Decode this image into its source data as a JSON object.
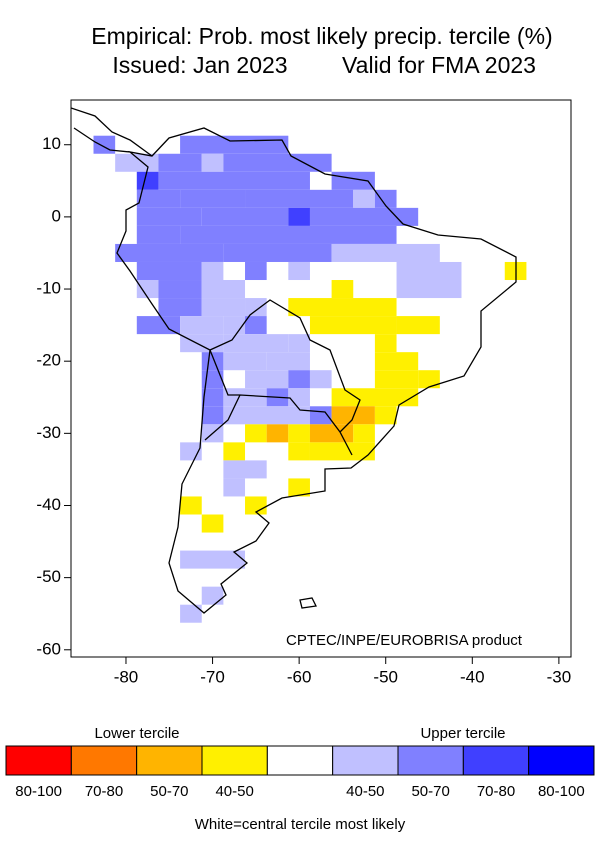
{
  "header": {
    "title": "Empirical: Prob. most likely precip. tercile (%)",
    "issued": "Issued: Jan 2023",
    "valid": "Valid for FMA 2023"
  },
  "map": {
    "xlim": [
      -86.35,
      -28.6
    ],
    "ylim": [
      -61,
      16.2
    ],
    "xticks": [
      -80,
      -70,
      -60,
      -50,
      -40,
      -30
    ],
    "yticks": [
      10,
      0,
      -10,
      -20,
      -30,
      -40,
      -50,
      -60
    ],
    "cell_size": 2.5,
    "credit": "CPTEC/INPE/EUROBRISA product",
    "runs": [
      [
        10,
        -82.5,
        -82.5,
        6
      ],
      [
        10,
        -72.5,
        -62.5,
        6
      ],
      [
        7.5,
        -80,
        -77.5,
        5
      ],
      [
        7.5,
        -75,
        -72.5,
        6
      ],
      [
        7.5,
        -70,
        -70,
        5
      ],
      [
        7.5,
        -67.5,
        -57.5,
        6
      ],
      [
        5,
        -77.5,
        -77.5,
        7
      ],
      [
        5,
        -75,
        -60,
        6
      ],
      [
        5,
        -55,
        -52.5,
        6
      ],
      [
        2.5,
        -77.5,
        -75,
        6
      ],
      [
        2.5,
        -72.5,
        -67.5,
        6
      ],
      [
        2.5,
        -65,
        -55,
        6
      ],
      [
        2.5,
        -52.5,
        -52.5,
        5
      ],
      [
        2.5,
        -50,
        -50,
        6
      ],
      [
        0,
        -77.5,
        -72.5,
        6
      ],
      [
        0,
        -70,
        -62.5,
        6
      ],
      [
        0,
        -60,
        -60,
        7
      ],
      [
        0,
        -57.5,
        -47.5,
        6
      ],
      [
        -2.5,
        -77.5,
        -75,
        6
      ],
      [
        -2.5,
        -72.5,
        -50,
        6
      ],
      [
        -5,
        -80,
        -70,
        6
      ],
      [
        -5,
        -67.5,
        -57.5,
        6
      ],
      [
        -5,
        -55,
        -45,
        5
      ],
      [
        -7.5,
        -77.5,
        -72.5,
        6
      ],
      [
        -7.5,
        -70,
        -70,
        5
      ],
      [
        -7.5,
        -65,
        -65,
        6
      ],
      [
        -7.5,
        -60,
        -60,
        5
      ],
      [
        -7.5,
        -47.5,
        -42.5,
        5
      ],
      [
        -7.5,
        -35,
        -35,
        3
      ],
      [
        -10,
        -77.5,
        -77.5,
        5
      ],
      [
        -10,
        -75,
        -72.5,
        6
      ],
      [
        -10,
        -70,
        -67.5,
        5
      ],
      [
        -10,
        -55,
        -55,
        3
      ],
      [
        -10,
        -47.5,
        -42.5,
        5
      ],
      [
        -12.5,
        -75,
        -72.5,
        6
      ],
      [
        -12.5,
        -70,
        -67.5,
        5
      ],
      [
        -12.5,
        -65,
        -65,
        5
      ],
      [
        -12.5,
        -60,
        -50,
        3
      ],
      [
        -15,
        -77.5,
        -75,
        6
      ],
      [
        -15,
        -72.5,
        -70,
        5
      ],
      [
        -15,
        -67.5,
        -67.5,
        5
      ],
      [
        -15,
        -65,
        -65,
        6
      ],
      [
        -15,
        -57.5,
        -50,
        3
      ],
      [
        -15,
        -47.5,
        -45,
        3
      ],
      [
        -17.5,
        -72.5,
        -70,
        5
      ],
      [
        -17.5,
        -67.5,
        -62.5,
        5
      ],
      [
        -17.5,
        -60,
        -60,
        5
      ],
      [
        -17.5,
        -50,
        -50,
        3
      ],
      [
        -20,
        -70,
        -70,
        6
      ],
      [
        -20,
        -67.5,
        -65,
        5
      ],
      [
        -20,
        -62.5,
        -60,
        5
      ],
      [
        -20,
        -50,
        -47.5,
        3
      ],
      [
        -22.5,
        -70,
        -70,
        6
      ],
      [
        -22.5,
        -65,
        -62.5,
        5
      ],
      [
        -22.5,
        -60,
        -60,
        6
      ],
      [
        -22.5,
        -57.5,
        -57.5,
        5
      ],
      [
        -22.5,
        -50,
        -47.5,
        3
      ],
      [
        -22.5,
        -45,
        -45,
        3
      ],
      [
        -25,
        -70,
        -70,
        6
      ],
      [
        -25,
        -67.5,
        -65,
        5
      ],
      [
        -25,
        -62.5,
        -62.5,
        6
      ],
      [
        -25,
        -60,
        -60,
        5
      ],
      [
        -25,
        -55,
        -47.5,
        3
      ],
      [
        -27.5,
        -70,
        -70,
        6
      ],
      [
        -27.5,
        -67.5,
        -60,
        5
      ],
      [
        -27.5,
        -57.5,
        -57.5,
        6
      ],
      [
        -27.5,
        -55,
        -52.5,
        2
      ],
      [
        -27.5,
        -50,
        -50,
        3
      ],
      [
        -30,
        -70,
        -70,
        5
      ],
      [
        -30,
        -65,
        -65,
        3
      ],
      [
        -30,
        -62.5,
        -62.5,
        2
      ],
      [
        -30,
        -60,
        -60,
        3
      ],
      [
        -30,
        -57.5,
        -55,
        2
      ],
      [
        -30,
        -52.5,
        -52.5,
        3
      ],
      [
        -32.5,
        -72.5,
        -72.5,
        5
      ],
      [
        -32.5,
        -67.5,
        -67.5,
        3
      ],
      [
        -32.5,
        -60,
        -60,
        3
      ],
      [
        -32.5,
        -57.5,
        -52.5,
        3
      ],
      [
        -35,
        -67.5,
        -65,
        5
      ],
      [
        -37.5,
        -67.5,
        -67.5,
        5
      ],
      [
        -37.5,
        -60,
        -60,
        3
      ],
      [
        -40,
        -72.5,
        -72.5,
        3
      ],
      [
        -40,
        -65,
        -65,
        3
      ],
      [
        -42.5,
        -70,
        -70,
        3
      ],
      [
        -47.5,
        -72.5,
        -67.5,
        5
      ],
      [
        -52.5,
        -70,
        -70,
        5
      ],
      [
        -55,
        -72.5,
        -72.5,
        5
      ]
    ]
  },
  "legend": {
    "lower_label": "Lower tercile",
    "upper_label": "Upper tercile",
    "bins": [
      {
        "label": "80-100",
        "color": "#ff0000"
      },
      {
        "label": "70-80",
        "color": "#ff7800"
      },
      {
        "label": "50-70",
        "color": "#ffb400"
      },
      {
        "label": "40-50",
        "color": "#fff000"
      },
      {
        "label": null,
        "color": "#ffffff"
      },
      {
        "label": "40-50",
        "color": "#c0c0ff"
      },
      {
        "label": "50-70",
        "color": "#8080ff"
      },
      {
        "label": "70-80",
        "color": "#4040ff"
      },
      {
        "label": "80-100",
        "color": "#0000ff"
      }
    ],
    "note": "White=central tercile most likely"
  }
}
